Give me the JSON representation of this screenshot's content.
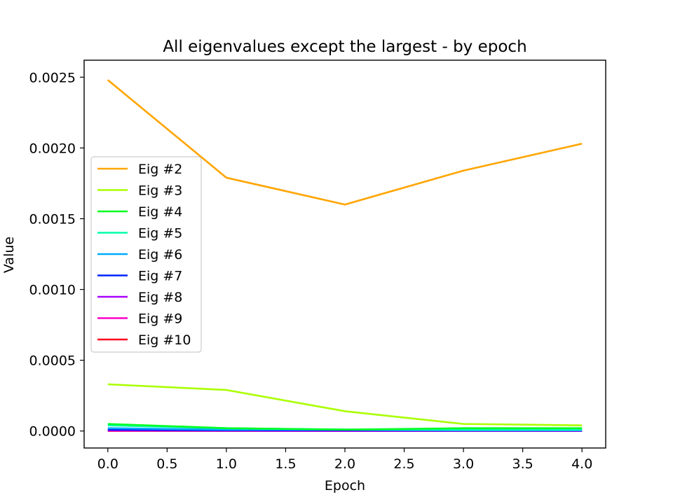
{
  "chart_data": {
    "type": "line",
    "title": "All eigenvalues except the largest - by epoch",
    "xlabel": "Epoch",
    "ylabel": "Value",
    "xlim": [
      -0.2,
      4.2
    ],
    "ylim": [
      -0.00012,
      0.00262
    ],
    "x_ticks": [
      "0.0",
      "0.5",
      "1.0",
      "1.5",
      "2.0",
      "2.5",
      "3.0",
      "3.5",
      "4.0"
    ],
    "y_ticks": [
      "0.0000",
      "0.0005",
      "0.0010",
      "0.0015",
      "0.0020",
      "0.0025"
    ],
    "grid": false,
    "legend_position": "center-left",
    "x": [
      0,
      1,
      2,
      3,
      4
    ],
    "series": [
      {
        "name": "Eig #2",
        "color": "#ffa500",
        "values": [
          0.00248,
          0.00179,
          0.0016,
          0.00184,
          0.00203
        ]
      },
      {
        "name": "Eig #3",
        "color": "#aaff00",
        "values": [
          0.00033,
          0.00029,
          0.00014,
          5e-05,
          4e-05
        ]
      },
      {
        "name": "Eig #4",
        "color": "#00ff22",
        "values": [
          5e-05,
          2e-05,
          1e-05,
          2e-05,
          2e-05
        ]
      },
      {
        "name": "Eig #5",
        "color": "#00ffaa",
        "values": [
          4e-05,
          2e-05,
          1e-05,
          1e-05,
          1e-05
        ]
      },
      {
        "name": "Eig #6",
        "color": "#00aaff",
        "values": [
          2e-05,
          1e-05,
          1e-05,
          5e-06,
          5e-06
        ]
      },
      {
        "name": "Eig #7",
        "color": "#0022ff",
        "values": [
          1e-05,
          5e-06,
          5e-06,
          3e-06,
          3e-06
        ]
      },
      {
        "name": "Eig #8",
        "color": "#aa00ff",
        "values": [
          5e-06,
          3e-06,
          2e-06,
          2e-06,
          2e-06
        ]
      },
      {
        "name": "Eig #9",
        "color": "#ff00cc",
        "values": [
          3e-06,
          2e-06,
          1e-06,
          1e-06,
          1e-06
        ]
      },
      {
        "name": "Eig #10",
        "color": "#ff0022",
        "values": [
          1e-06,
          1e-06,
          1e-06,
          0.0,
          0.0
        ]
      }
    ]
  }
}
